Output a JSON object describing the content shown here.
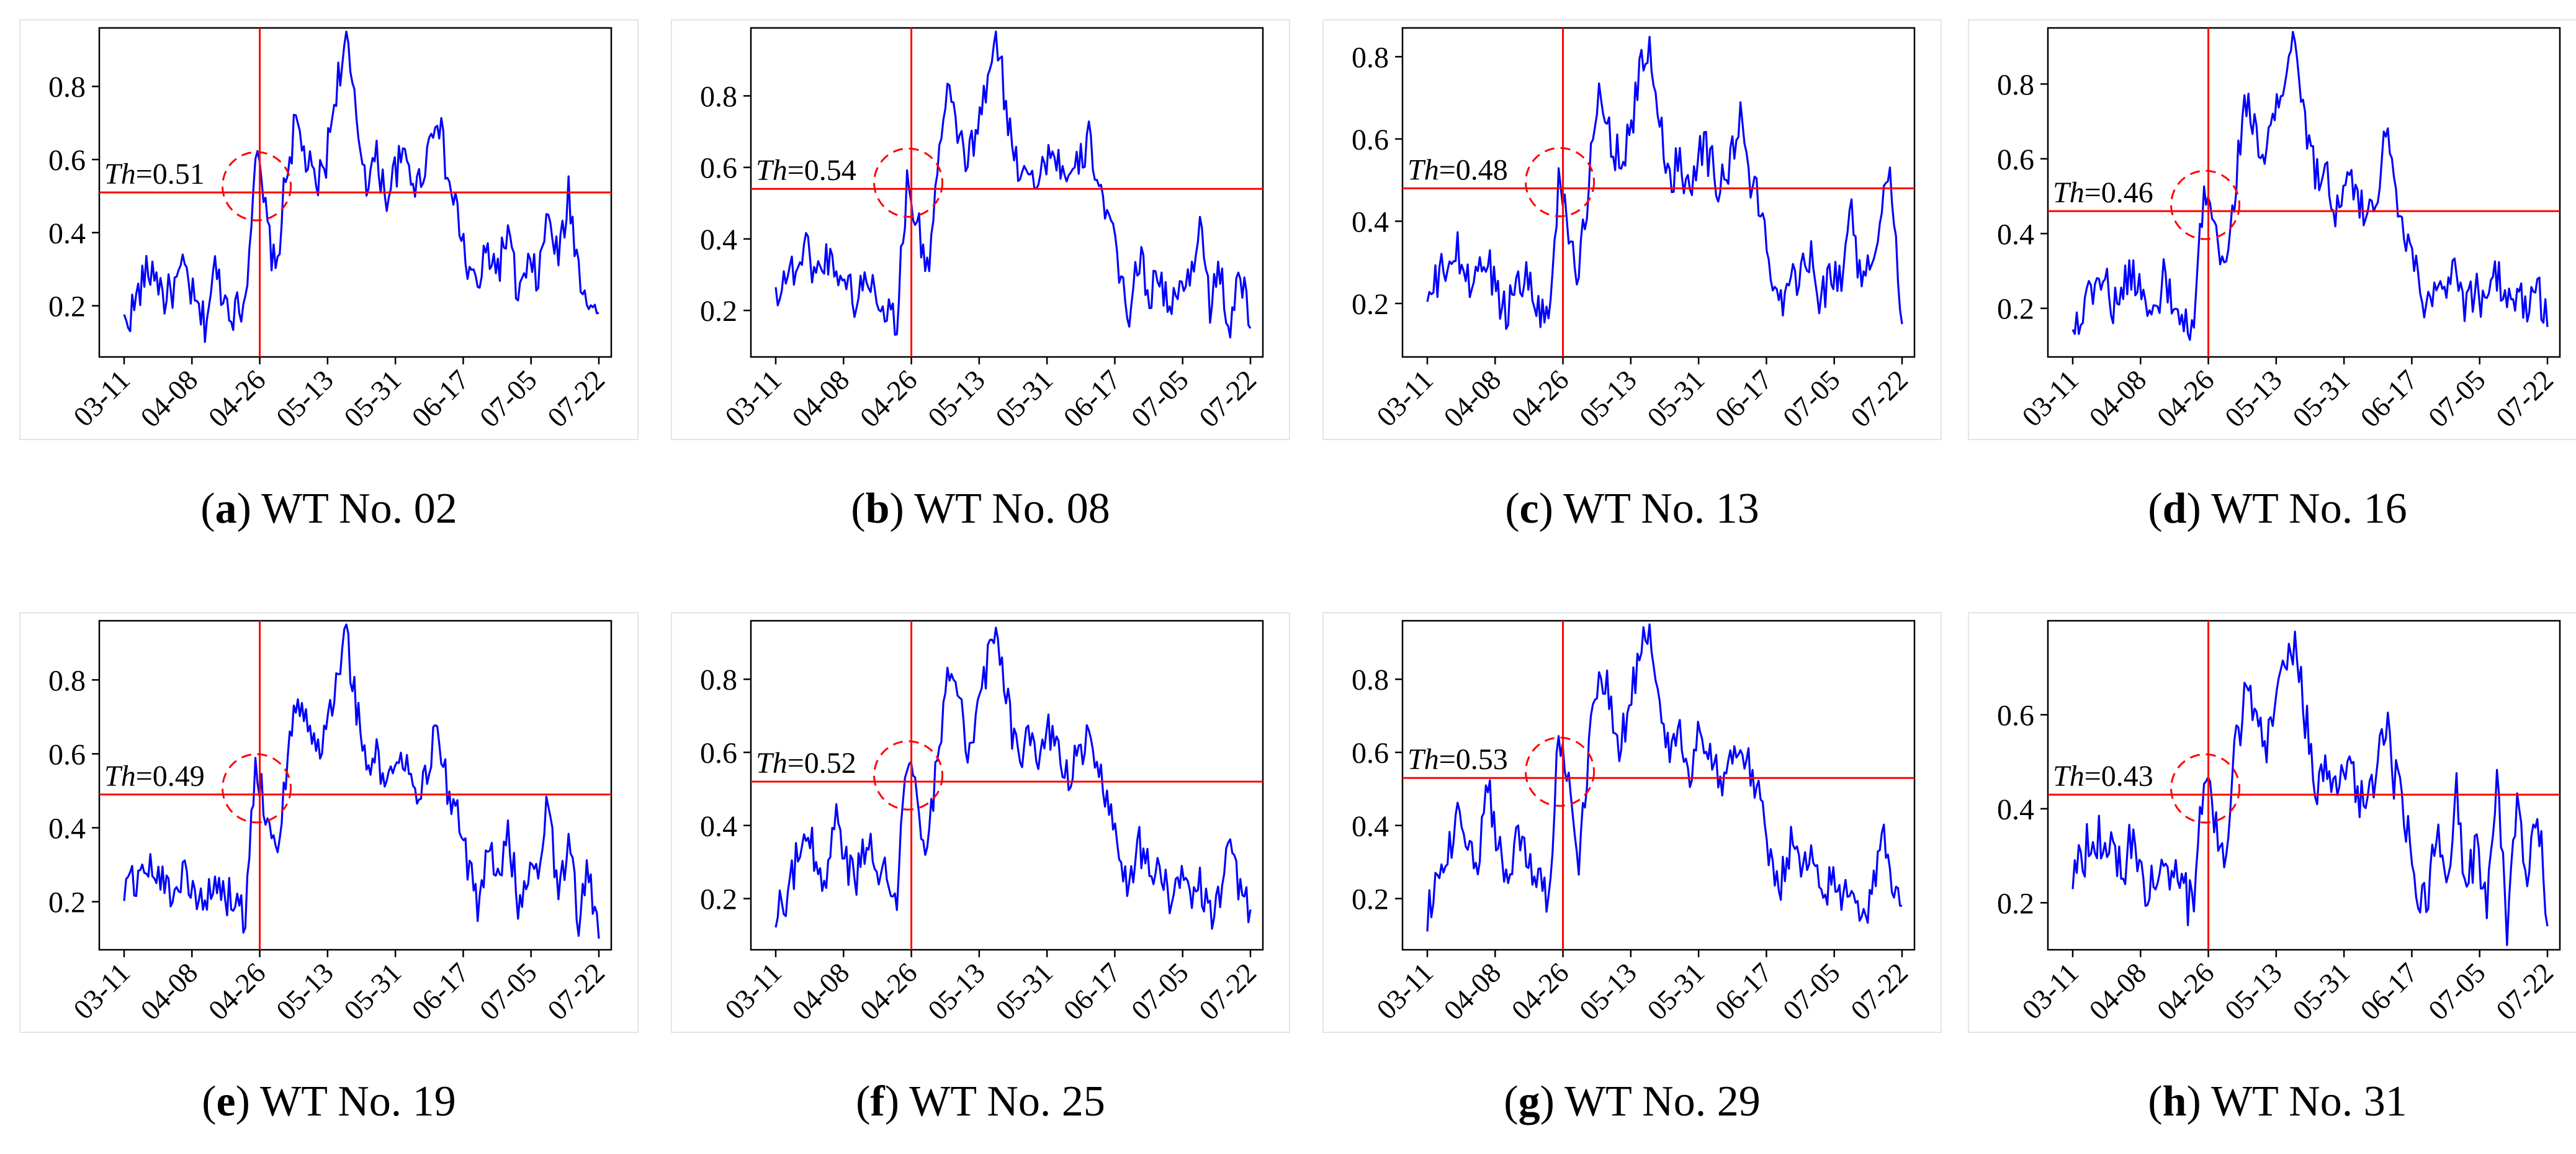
{
  "figure": {
    "line_color": "#0000ff",
    "threshold_color": "#ff0000",
    "threshold_symbol": "Th",
    "axis_color": "#000000"
  },
  "chart_data": [
    {
      "type": "line",
      "letter": "a",
      "title": "WT No. 02",
      "threshold": 0.51,
      "threshold_label": "=0.51",
      "fault_date": "04-26",
      "xlabel": "",
      "ylabel": "",
      "xticks": [
        "03-11",
        "04-08",
        "04-26",
        "05-13",
        "05-31",
        "06-17",
        "07-05",
        "07-22"
      ],
      "yticks": [
        0.2,
        0.4,
        0.6,
        0.8
      ],
      "ylim": [
        0.06,
        0.96
      ],
      "anchors": [
        0.15,
        0.2,
        0.28,
        0.3,
        0.22,
        0.25,
        0.3,
        0.2,
        0.15,
        0.3,
        0.22,
        0.18,
        0.22,
        0.62,
        0.45,
        0.28,
        0.55,
        0.7,
        0.6,
        0.52,
        0.6,
        0.8,
        0.92,
        0.7,
        0.55,
        0.6,
        0.5,
        0.58,
        0.6,
        0.52,
        0.62,
        0.74,
        0.55,
        0.45,
        0.3,
        0.25,
        0.35,
        0.3,
        0.4,
        0.22,
        0.3,
        0.28,
        0.45,
        0.32,
        0.5,
        0.3,
        0.22,
        0.18
      ]
    },
    {
      "type": "line",
      "letter": "b",
      "title": "WT No. 08",
      "threshold": 0.54,
      "threshold_label": "=0.54",
      "fault_date": "04-26",
      "xlabel": "",
      "ylabel": "",
      "xticks": [
        "03-11",
        "04-08",
        "04-26",
        "05-13",
        "05-31",
        "06-17",
        "07-05",
        "07-22"
      ],
      "yticks": [
        0.2,
        0.4,
        0.6,
        0.8
      ],
      "ylim": [
        0.07,
        0.99
      ],
      "anchors": [
        0.25,
        0.3,
        0.32,
        0.38,
        0.3,
        0.35,
        0.32,
        0.28,
        0.22,
        0.3,
        0.25,
        0.2,
        0.18,
        0.55,
        0.45,
        0.3,
        0.6,
        0.8,
        0.7,
        0.62,
        0.7,
        0.85,
        0.95,
        0.72,
        0.6,
        0.62,
        0.55,
        0.65,
        0.62,
        0.55,
        0.6,
        0.68,
        0.56,
        0.45,
        0.3,
        0.2,
        0.35,
        0.25,
        0.3,
        0.2,
        0.25,
        0.3,
        0.45,
        0.22,
        0.3,
        0.15,
        0.3,
        0.15
      ]
    },
    {
      "type": "line",
      "letter": "c",
      "title": "WT No. 13",
      "threshold": 0.48,
      "threshold_label": "=0.48",
      "fault_date": "04-26",
      "xlabel": "",
      "ylabel": "",
      "xticks": [
        "03-11",
        "04-08",
        "04-26",
        "05-13",
        "05-31",
        "06-17",
        "07-05",
        "07-22"
      ],
      "yticks": [
        0.2,
        0.4,
        0.6,
        0.8
      ],
      "ylim": [
        0.07,
        0.87
      ],
      "anchors": [
        0.2,
        0.25,
        0.3,
        0.32,
        0.25,
        0.28,
        0.3,
        0.22,
        0.18,
        0.28,
        0.25,
        0.2,
        0.15,
        0.5,
        0.4,
        0.25,
        0.5,
        0.7,
        0.62,
        0.55,
        0.6,
        0.75,
        0.82,
        0.65,
        0.5,
        0.55,
        0.48,
        0.6,
        0.55,
        0.48,
        0.55,
        0.65,
        0.5,
        0.42,
        0.3,
        0.2,
        0.3,
        0.25,
        0.35,
        0.2,
        0.28,
        0.25,
        0.45,
        0.22,
        0.3,
        0.45,
        0.5,
        0.15
      ]
    },
    {
      "type": "line",
      "letter": "d",
      "title": "WT No. 16",
      "threshold": 0.46,
      "threshold_label": "=0.46",
      "fault_date": "04-26",
      "xlabel": "",
      "ylabel": "",
      "xticks": [
        "03-11",
        "04-08",
        "04-26",
        "05-13",
        "05-31",
        "06-17",
        "07-05",
        "07-22"
      ],
      "yticks": [
        0.2,
        0.4,
        0.6,
        0.8
      ],
      "ylim": [
        0.07,
        0.95
      ],
      "anchors": [
        0.15,
        0.2,
        0.25,
        0.3,
        0.2,
        0.25,
        0.3,
        0.22,
        0.18,
        0.28,
        0.2,
        0.15,
        0.12,
        0.55,
        0.4,
        0.28,
        0.5,
        0.75,
        0.7,
        0.6,
        0.7,
        0.82,
        0.92,
        0.7,
        0.55,
        0.6,
        0.45,
        0.55,
        0.5,
        0.45,
        0.5,
        0.68,
        0.5,
        0.4,
        0.3,
        0.2,
        0.3,
        0.25,
        0.3,
        0.2,
        0.25,
        0.2,
        0.3,
        0.2,
        0.25,
        0.2,
        0.25,
        0.15
      ]
    },
    {
      "type": "line",
      "letter": "e",
      "title": "WT No. 19",
      "threshold": 0.49,
      "threshold_label": "=0.49",
      "fault_date": "04-26",
      "xlabel": "",
      "ylabel": "",
      "xticks": [
        "03-11",
        "04-08",
        "04-26",
        "05-13",
        "05-31",
        "06-17",
        "07-05",
        "07-22"
      ],
      "yticks": [
        0.2,
        0.4,
        0.6,
        0.8
      ],
      "ylim": [
        0.07,
        0.96
      ],
      "anchors": [
        0.22,
        0.25,
        0.3,
        0.28,
        0.25,
        0.22,
        0.3,
        0.2,
        0.18,
        0.25,
        0.22,
        0.2,
        0.15,
        0.6,
        0.45,
        0.3,
        0.55,
        0.75,
        0.7,
        0.6,
        0.65,
        0.82,
        0.93,
        0.72,
        0.55,
        0.6,
        0.5,
        0.6,
        0.55,
        0.5,
        0.55,
        0.7,
        0.5,
        0.42,
        0.3,
        0.2,
        0.35,
        0.25,
        0.4,
        0.2,
        0.3,
        0.25,
        0.48,
        0.2,
        0.35,
        0.15,
        0.3,
        0.1
      ]
    },
    {
      "type": "line",
      "letter": "f",
      "title": "WT No. 25",
      "threshold": 0.52,
      "threshold_label": "=0.52",
      "fault_date": "04-26",
      "xlabel": "",
      "ylabel": "",
      "xticks": [
        "03-11",
        "04-08",
        "04-26",
        "05-13",
        "05-31",
        "06-17",
        "07-05",
        "07-22"
      ],
      "yticks": [
        0.2,
        0.4,
        0.6,
        0.8
      ],
      "ylim": [
        0.06,
        0.96
      ],
      "anchors": [
        0.15,
        0.2,
        0.3,
        0.4,
        0.3,
        0.25,
        0.45,
        0.3,
        0.25,
        0.35,
        0.3,
        0.25,
        0.2,
        0.6,
        0.45,
        0.3,
        0.6,
        0.8,
        0.75,
        0.62,
        0.7,
        0.85,
        0.93,
        0.72,
        0.58,
        0.65,
        0.55,
        0.65,
        0.6,
        0.52,
        0.6,
        0.65,
        0.55,
        0.45,
        0.3,
        0.25,
        0.35,
        0.28,
        0.3,
        0.2,
        0.25,
        0.2,
        0.25,
        0.15,
        0.2,
        0.35,
        0.2,
        0.17
      ]
    },
    {
      "type": "line",
      "letter": "g",
      "title": "WT No. 29",
      "threshold": 0.53,
      "threshold_label": "=0.53",
      "fault_date": "04-26",
      "xlabel": "",
      "ylabel": "",
      "xticks": [
        "03-11",
        "04-08",
        "04-26",
        "05-13",
        "05-31",
        "06-17",
        "07-05",
        "07-22"
      ],
      "yticks": [
        0.2,
        0.4,
        0.6,
        0.8
      ],
      "ylim": [
        0.06,
        0.96
      ],
      "anchors": [
        0.15,
        0.25,
        0.3,
        0.45,
        0.35,
        0.3,
        0.5,
        0.35,
        0.25,
        0.4,
        0.3,
        0.25,
        0.2,
        0.65,
        0.5,
        0.3,
        0.6,
        0.85,
        0.75,
        0.62,
        0.72,
        0.88,
        0.93,
        0.75,
        0.6,
        0.65,
        0.55,
        0.65,
        0.6,
        0.52,
        0.58,
        0.62,
        0.55,
        0.45,
        0.3,
        0.25,
        0.35,
        0.28,
        0.3,
        0.2,
        0.25,
        0.2,
        0.25,
        0.15,
        0.2,
        0.4,
        0.2,
        0.18
      ]
    },
    {
      "type": "line",
      "letter": "h",
      "title": "WT No. 31",
      "threshold": 0.43,
      "threshold_label": "=0.43",
      "fault_date": "04-26",
      "xlabel": "",
      "ylabel": "",
      "xticks": [
        "03-11",
        "04-08",
        "04-26",
        "05-13",
        "05-31",
        "06-17",
        "07-05",
        "07-22"
      ],
      "yticks": [
        0.2,
        0.4,
        0.6
      ],
      "ylim": [
        0.1,
        0.8
      ],
      "anchors": [
        0.28,
        0.3,
        0.35,
        0.32,
        0.3,
        0.28,
        0.35,
        0.25,
        0.22,
        0.3,
        0.25,
        0.22,
        0.18,
        0.48,
        0.38,
        0.25,
        0.5,
        0.65,
        0.6,
        0.5,
        0.6,
        0.72,
        0.75,
        0.6,
        0.45,
        0.5,
        0.42,
        0.5,
        0.45,
        0.4,
        0.45,
        0.58,
        0.45,
        0.38,
        0.25,
        0.18,
        0.35,
        0.2,
        0.45,
        0.2,
        0.35,
        0.18,
        0.5,
        0.15,
        0.45,
        0.25,
        0.4,
        0.15
      ]
    }
  ]
}
